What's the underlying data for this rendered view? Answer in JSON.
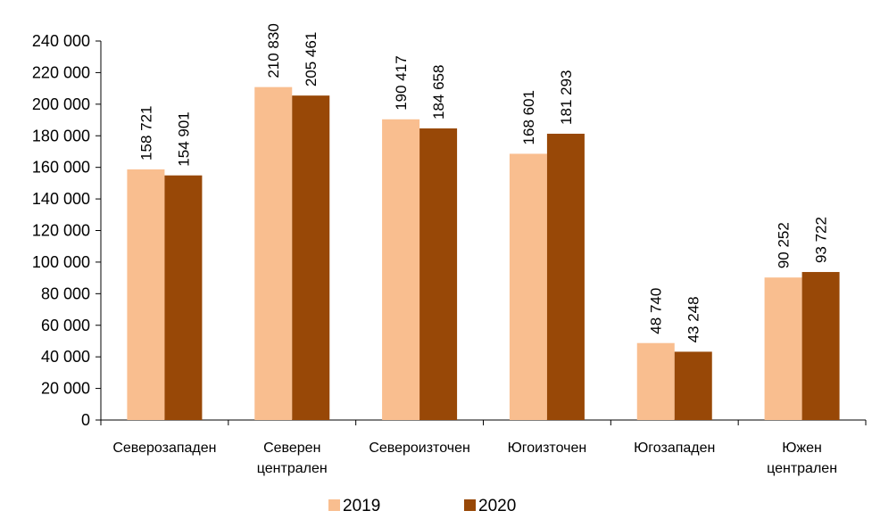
{
  "chart_data": {
    "type": "bar",
    "title": "",
    "xlabel": "",
    "ylabel": "",
    "ylim": [
      0,
      240000
    ],
    "yticks": [
      0,
      20000,
      40000,
      60000,
      80000,
      100000,
      120000,
      140000,
      160000,
      180000,
      200000,
      220000,
      240000
    ],
    "ytick_labels": [
      "0",
      "20 000",
      "40 000",
      "60 000",
      "80 000",
      "100 000",
      "120 000",
      "140 000",
      "160 000",
      "180 000",
      "200 000",
      "220 000",
      "240 000"
    ],
    "categories": [
      [
        "Северозападен"
      ],
      [
        "Северен",
        "централен"
      ],
      [
        "Североизточен"
      ],
      [
        "Югоизточен"
      ],
      [
        "Югозападен"
      ],
      [
        "Южен",
        "централен"
      ]
    ],
    "series": [
      {
        "name": "2019",
        "color": "#F9BE8F",
        "values": [
          158721,
          210830,
          190417,
          168601,
          48740,
          90252
        ],
        "labels": [
          "158 721",
          "210 830",
          "190 417",
          "168 601",
          "48 740",
          "90 252"
        ]
      },
      {
        "name": "2020",
        "color": "#984807",
        "values": [
          154901,
          205461,
          184658,
          181293,
          43248,
          93722
        ],
        "labels": [
          "154 901",
          "205 461",
          "184 658",
          "181 293",
          "43 248",
          "93 722"
        ]
      }
    ],
    "grid": false,
    "legend": "bottom",
    "data_labels": "rotated-vertical"
  }
}
